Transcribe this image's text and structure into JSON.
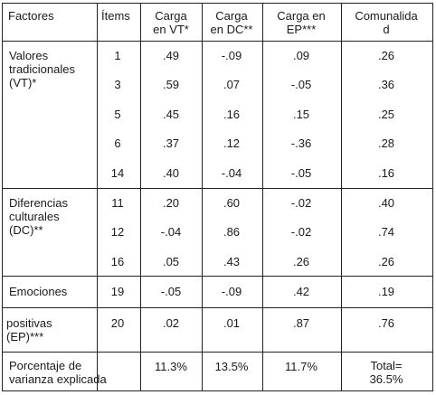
{
  "headers": {
    "factores": "Factores",
    "items": "Ítems",
    "vt": [
      "Carga",
      "en VT*"
    ],
    "dc": [
      "Carga",
      "en DC**"
    ],
    "ep": [
      "Carga en",
      "EP***"
    ],
    "com": [
      "Comunalida",
      "d"
    ]
  },
  "factors": {
    "vt": [
      "Valores",
      "tradicionales",
      "(VT)*"
    ],
    "dc": [
      "Diferencias",
      "culturales",
      "(DC)**"
    ],
    "emo": [
      "Emociones"
    ],
    "ep": [
      "positivas",
      "(EP)***"
    ],
    "pct": [
      "Porcentaje de",
      "varianza explicada"
    ]
  },
  "rows": [
    {
      "item": "1",
      "vt": ".49",
      "dc": "-.09",
      "ep": ".09",
      "com": ".26"
    },
    {
      "item": "3",
      "vt": ".59",
      "dc": ".07",
      "ep": "-.05",
      "com": ".36"
    },
    {
      "item": "5",
      "vt": ".45",
      "dc": ".16",
      "ep": ".15",
      "com": ".25"
    },
    {
      "item": "6",
      "vt": ".37",
      "dc": ".12",
      "ep": "-.36",
      "com": ".28"
    },
    {
      "item": "14",
      "vt": ".40",
      "dc": "-.04",
      "ep": "-.05",
      "com": ".16"
    },
    {
      "item": "11",
      "vt": ".20",
      "dc": ".60",
      "ep": "-.02",
      "com": ".40"
    },
    {
      "item": "12",
      "vt": "-.04",
      "dc": ".86",
      "ep": "-.02",
      "com": ".74"
    },
    {
      "item": "16",
      "vt": ".05",
      "dc": ".43",
      "ep": ".26",
      "com": ".26"
    },
    {
      "item": "19",
      "vt": "-.05",
      "dc": "-.09",
      "ep": ".42",
      "com": ".19"
    },
    {
      "item": "20",
      "vt": ".02",
      "dc": ".01",
      "ep": ".87",
      "com": ".76"
    }
  ],
  "totals": {
    "vt": "11.3%",
    "dc": "13.5%",
    "ep": "11.7%",
    "com": [
      "Total=",
      "36.5%"
    ]
  }
}
